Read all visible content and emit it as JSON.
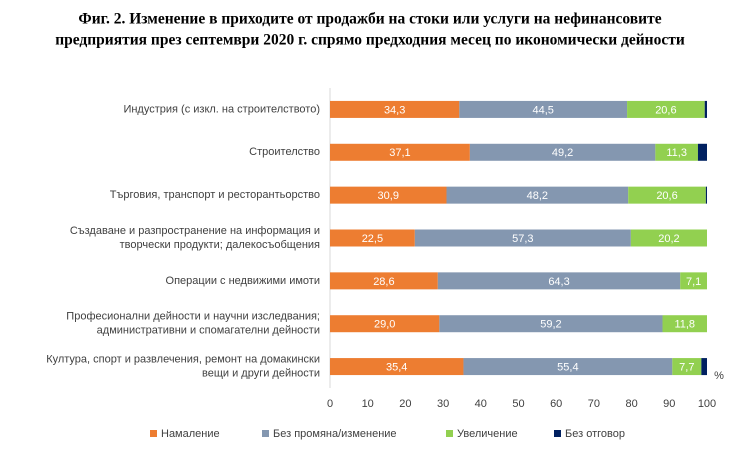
{
  "chart_data": {
    "type": "stacked_barh",
    "title": [
      "Фиг. 2. Изменение в приходите от продажби на стоки или услуги  на нефинансовите",
      "предприятия през септември 2020 г. спрямо предходния месец по икономически дейности"
    ],
    "categories": [
      [
        "Индустрия (с изкл. на строителството)"
      ],
      [
        "Строителство"
      ],
      [
        "Търговия, транспорт и ресторантьорство"
      ],
      [
        "Създаване и разпространение на информация и",
        "творчески продукти; далекосъобщения"
      ],
      [
        "Операции с недвижими имоти"
      ],
      [
        "Професионални дейности и научни изследвания;",
        "административни и спомагателни дейности"
      ],
      [
        "Култура, спорт и развлечения, ремонт на домакински",
        "вещи и други дейности"
      ]
    ],
    "series": [
      {
        "name": "Намаление",
        "color": "#ed7d31",
        "values": [
          34.3,
          37.1,
          30.9,
          22.5,
          28.6,
          29.0,
          35.4
        ],
        "value_labels": [
          "34,3",
          "37,1",
          "30,9",
          "22,5",
          "28,6",
          "29,0",
          "35,4"
        ]
      },
      {
        "name": "Без промяна/изменение",
        "color": "#8497b0",
        "values": [
          44.5,
          49.2,
          48.2,
          57.3,
          64.3,
          59.2,
          55.4
        ],
        "value_labels": [
          "44,5",
          "49,2",
          "48,2",
          "57,3",
          "64,3",
          "59,2",
          "55,4"
        ]
      },
      {
        "name": "Увеличение",
        "color": "#92d050",
        "values": [
          20.6,
          11.3,
          20.6,
          20.2,
          7.1,
          11.8,
          7.7
        ],
        "value_labels": [
          "20,6",
          "11,3",
          "20,6",
          "20,2",
          "7,1",
          "11,8",
          "7,7"
        ]
      },
      {
        "name": "Без отговор",
        "color": "#002060",
        "values": [
          0.6,
          2.4,
          0.3,
          0,
          0,
          0,
          1.5
        ]
      }
    ],
    "xlim": [
      0,
      100
    ],
    "xticks": [
      0,
      10,
      20,
      30,
      40,
      50,
      60,
      70,
      80,
      90,
      100
    ],
    "x_unit": "%",
    "grid": false,
    "legend": "bottom"
  }
}
